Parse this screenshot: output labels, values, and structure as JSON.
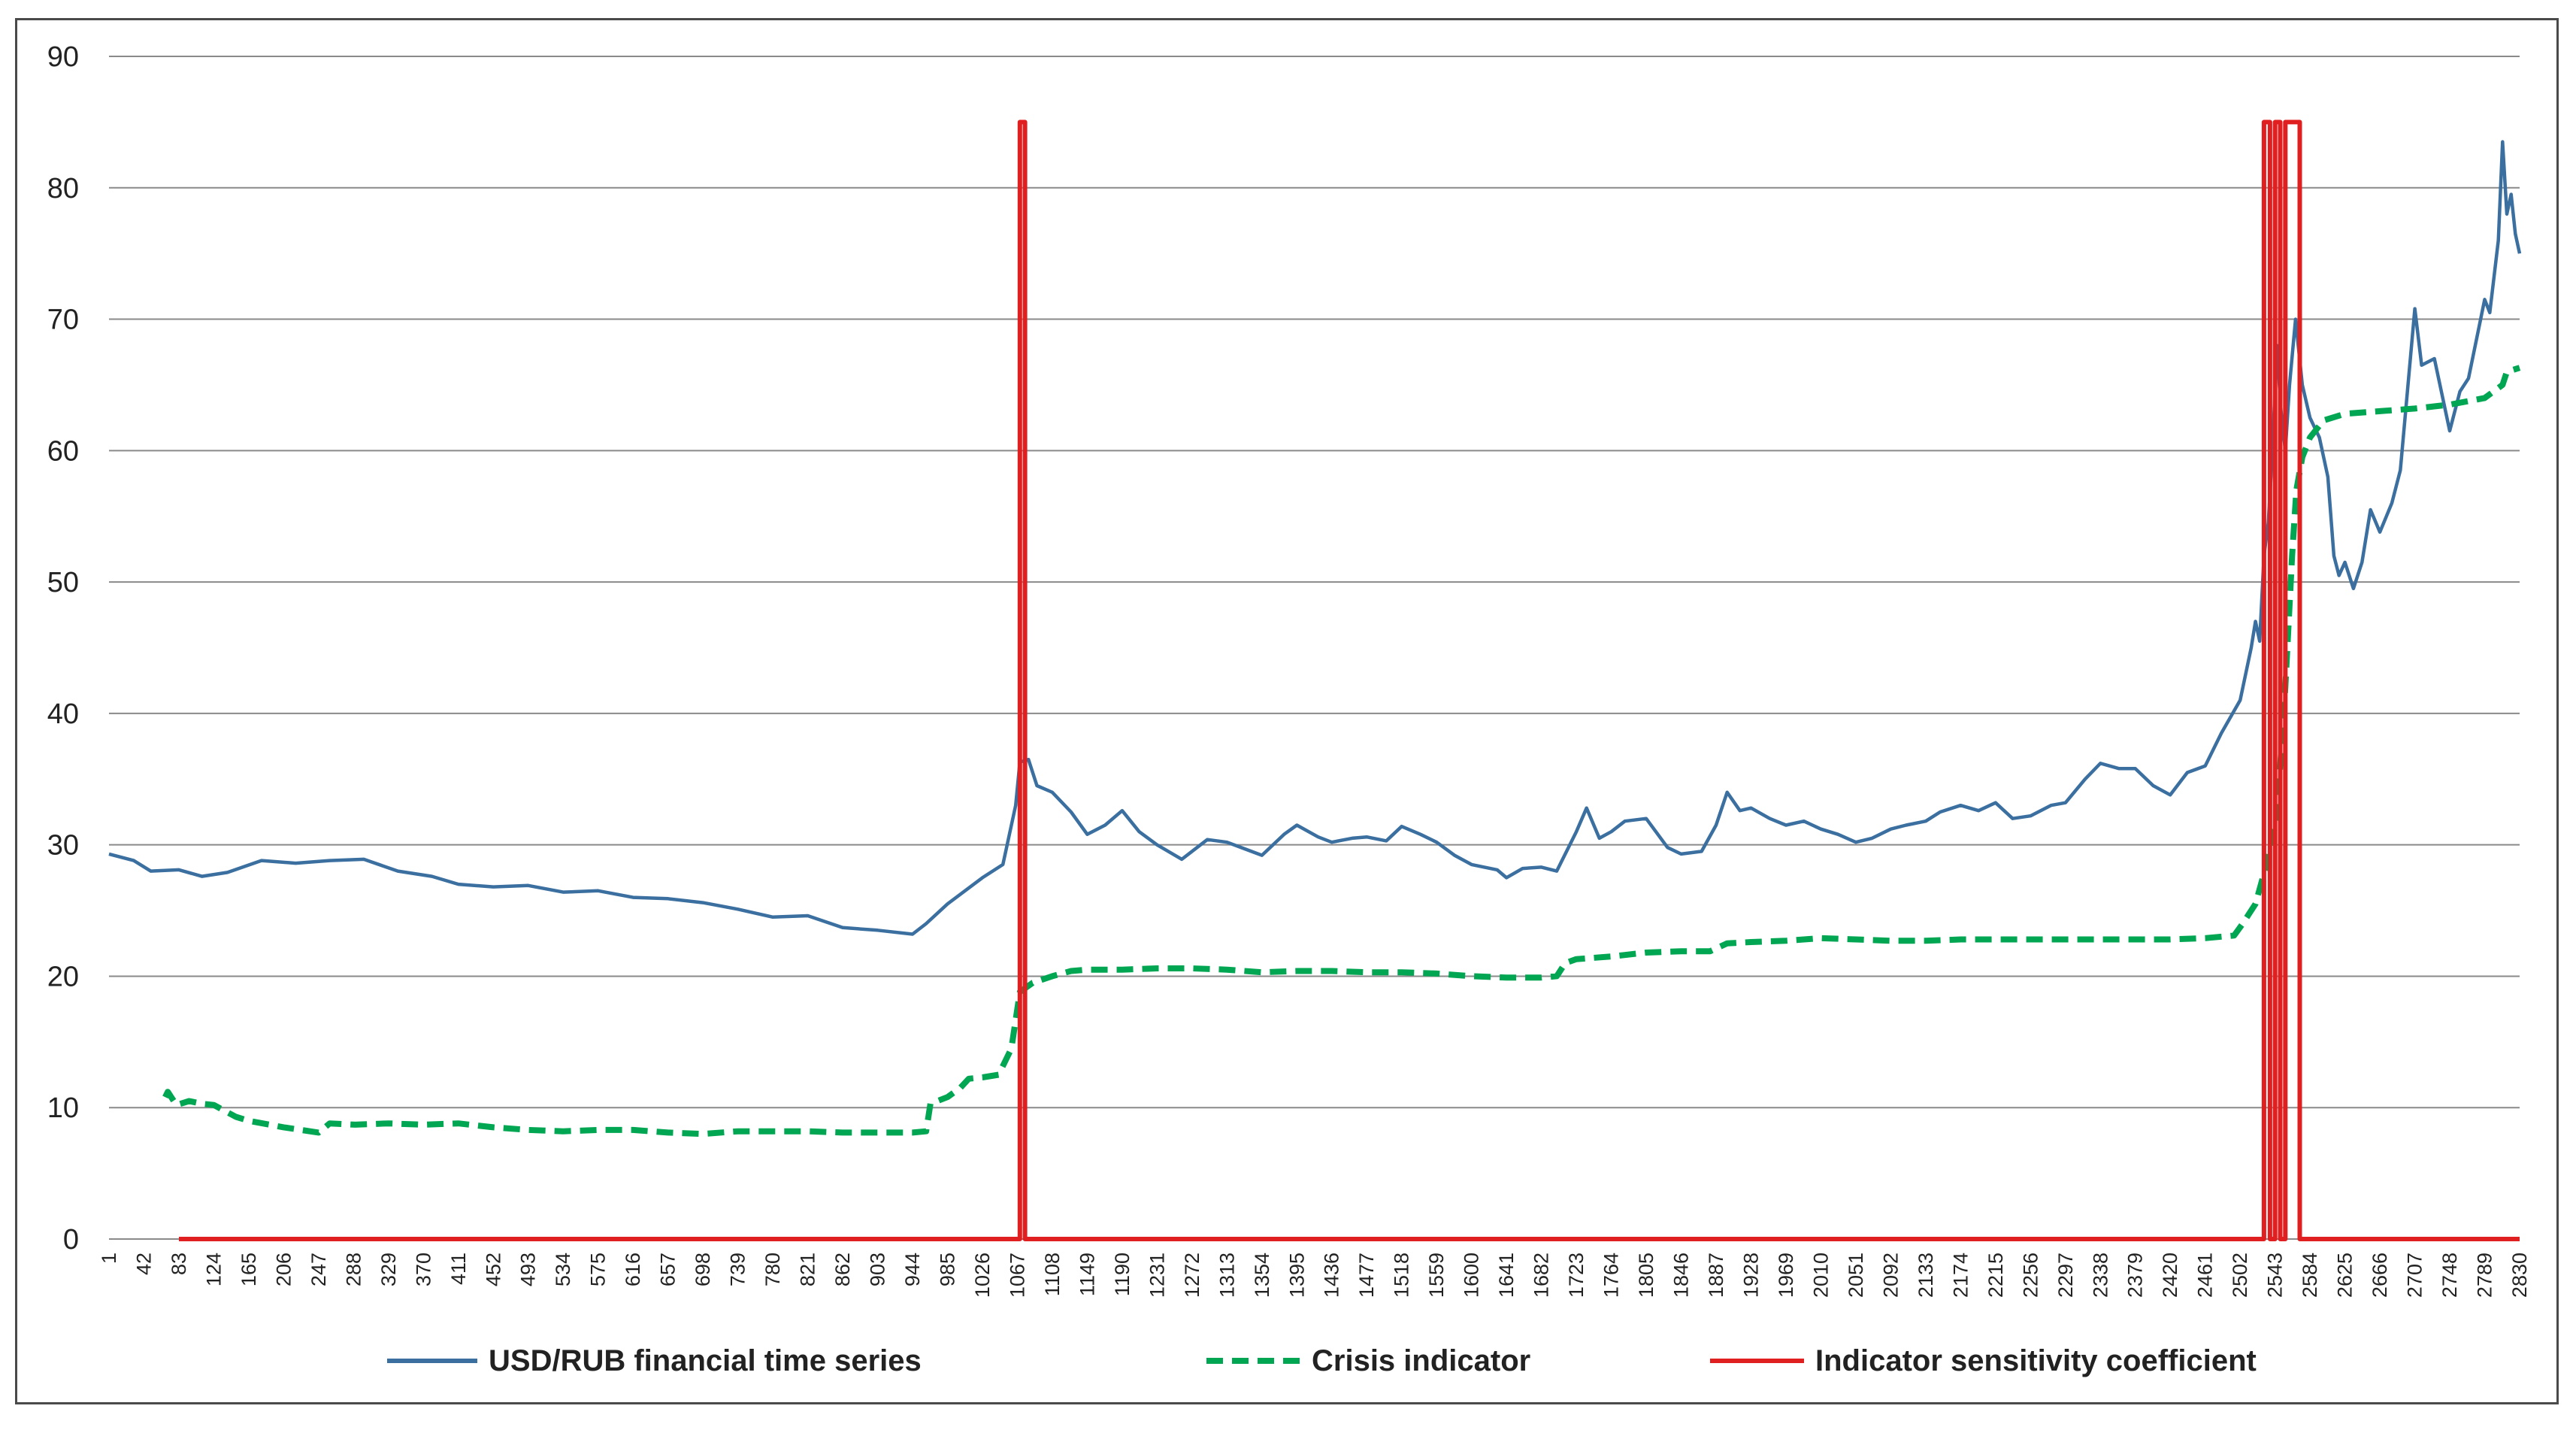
{
  "chart_data": {
    "type": "line",
    "title": "",
    "xlabel": "",
    "ylabel": "",
    "xlim": [
      1,
      2830
    ],
    "ylim": [
      0,
      90
    ],
    "yticks": [
      0,
      10,
      20,
      30,
      40,
      50,
      60,
      70,
      80,
      90
    ],
    "xticks": [
      1,
      42,
      83,
      124,
      165,
      206,
      247,
      288,
      329,
      370,
      411,
      452,
      493,
      534,
      575,
      616,
      657,
      698,
      739,
      780,
      821,
      862,
      903,
      944,
      985,
      1026,
      1067,
      1108,
      1149,
      1190,
      1231,
      1272,
      1313,
      1354,
      1395,
      1436,
      1477,
      1518,
      1559,
      1600,
      1641,
      1682,
      1723,
      1764,
      1805,
      1846,
      1887,
      1928,
      1969,
      2010,
      2051,
      2092,
      2133,
      2174,
      2215,
      2256,
      2297,
      2338,
      2379,
      2420,
      2461,
      2502,
      2543,
      2584,
      2625,
      2666,
      2707,
      2748,
      2789,
      2830
    ],
    "grid": true,
    "legend_position": "bottom",
    "series": [
      {
        "name": "USD/RUB financial time series",
        "color": "#3a6fa0",
        "style": "solid",
        "points": [
          [
            1,
            29.3
          ],
          [
            30,
            28.8
          ],
          [
            50,
            28.0
          ],
          [
            83,
            28.1
          ],
          [
            110,
            27.6
          ],
          [
            140,
            27.9
          ],
          [
            180,
            28.8
          ],
          [
            220,
            28.6
          ],
          [
            260,
            28.8
          ],
          [
            300,
            28.9
          ],
          [
            340,
            28.0
          ],
          [
            380,
            27.6
          ],
          [
            411,
            27.0
          ],
          [
            452,
            26.8
          ],
          [
            493,
            26.9
          ],
          [
            534,
            26.4
          ],
          [
            575,
            26.5
          ],
          [
            616,
            26.0
          ],
          [
            657,
            25.9
          ],
          [
            698,
            25.6
          ],
          [
            739,
            25.1
          ],
          [
            780,
            24.5
          ],
          [
            821,
            24.6
          ],
          [
            862,
            23.7
          ],
          [
            903,
            23.5
          ],
          [
            944,
            23.2
          ],
          [
            960,
            24.0
          ],
          [
            985,
            25.5
          ],
          [
            1026,
            27.5
          ],
          [
            1050,
            28.5
          ],
          [
            1065,
            33.0
          ],
          [
            1070,
            36.3
          ],
          [
            1080,
            36.5
          ],
          [
            1090,
            34.5
          ],
          [
            1108,
            34.0
          ],
          [
            1130,
            32.5
          ],
          [
            1149,
            30.8
          ],
          [
            1170,
            31.5
          ],
          [
            1190,
            32.6
          ],
          [
            1210,
            31.0
          ],
          [
            1231,
            30.0
          ],
          [
            1260,
            28.9
          ],
          [
            1290,
            30.4
          ],
          [
            1313,
            30.2
          ],
          [
            1354,
            29.2
          ],
          [
            1380,
            30.8
          ],
          [
            1395,
            31.5
          ],
          [
            1420,
            30.6
          ],
          [
            1436,
            30.2
          ],
          [
            1460,
            30.5
          ],
          [
            1477,
            30.6
          ],
          [
            1500,
            30.3
          ],
          [
            1518,
            31.4
          ],
          [
            1540,
            30.8
          ],
          [
            1559,
            30.2
          ],
          [
            1580,
            29.2
          ],
          [
            1600,
            28.5
          ],
          [
            1630,
            28.1
          ],
          [
            1641,
            27.5
          ],
          [
            1660,
            28.2
          ],
          [
            1682,
            28.3
          ],
          [
            1700,
            28.0
          ],
          [
            1723,
            31.0
          ],
          [
            1735,
            32.8
          ],
          [
            1750,
            30.5
          ],
          [
            1764,
            31.0
          ],
          [
            1780,
            31.8
          ],
          [
            1805,
            32.0
          ],
          [
            1830,
            29.8
          ],
          [
            1846,
            29.3
          ],
          [
            1870,
            29.5
          ],
          [
            1887,
            31.5
          ],
          [
            1900,
            34.0
          ],
          [
            1915,
            32.6
          ],
          [
            1928,
            32.8
          ],
          [
            1950,
            32.0
          ],
          [
            1969,
            31.5
          ],
          [
            1990,
            31.8
          ],
          [
            2010,
            31.2
          ],
          [
            2030,
            30.8
          ],
          [
            2051,
            30.2
          ],
          [
            2070,
            30.5
          ],
          [
            2092,
            31.2
          ],
          [
            2110,
            31.5
          ],
          [
            2133,
            31.8
          ],
          [
            2150,
            32.5
          ],
          [
            2174,
            33.0
          ],
          [
            2195,
            32.6
          ],
          [
            2215,
            33.2
          ],
          [
            2235,
            32.0
          ],
          [
            2256,
            32.2
          ],
          [
            2280,
            33.0
          ],
          [
            2297,
            33.2
          ],
          [
            2320,
            35.0
          ],
          [
            2338,
            36.2
          ],
          [
            2360,
            35.8
          ],
          [
            2379,
            35.8
          ],
          [
            2400,
            34.5
          ],
          [
            2420,
            33.8
          ],
          [
            2440,
            35.5
          ],
          [
            2461,
            36.0
          ],
          [
            2480,
            38.5
          ],
          [
            2502,
            41.0
          ],
          [
            2515,
            45.0
          ],
          [
            2520,
            47.0
          ],
          [
            2525,
            45.5
          ],
          [
            2530,
            52.0
          ],
          [
            2535,
            54.5
          ],
          [
            2540,
            60.0
          ],
          [
            2545,
            68.0
          ],
          [
            2550,
            63.0
          ],
          [
            2555,
            60.0
          ],
          [
            2560,
            65.0
          ],
          [
            2567,
            70.0
          ],
          [
            2575,
            65.0
          ],
          [
            2584,
            62.5
          ],
          [
            2595,
            61.0
          ],
          [
            2605,
            58.0
          ],
          [
            2612,
            52.0
          ],
          [
            2618,
            50.5
          ],
          [
            2625,
            51.5
          ],
          [
            2635,
            49.5
          ],
          [
            2645,
            51.5
          ],
          [
            2655,
            55.5
          ],
          [
            2666,
            53.8
          ],
          [
            2680,
            56.0
          ],
          [
            2690,
            58.5
          ],
          [
            2707,
            70.8
          ],
          [
            2715,
            66.5
          ],
          [
            2730,
            67.0
          ],
          [
            2748,
            61.5
          ],
          [
            2760,
            64.5
          ],
          [
            2770,
            65.5
          ],
          [
            2789,
            71.5
          ],
          [
            2795,
            70.5
          ],
          [
            2805,
            76.0
          ],
          [
            2810,
            83.5
          ],
          [
            2815,
            78.0
          ],
          [
            2820,
            79.5
          ],
          [
            2825,
            76.5
          ],
          [
            2830,
            75.0
          ]
        ]
      },
      {
        "name": "Crisis indicator",
        "color": "#00a651",
        "style": "dashed",
        "points": [
          [
            67,
            10.8
          ],
          [
            70,
            11.2
          ],
          [
            80,
            10.2
          ],
          [
            95,
            10.5
          ],
          [
            110,
            10.3
          ],
          [
            124,
            10.2
          ],
          [
            150,
            9.3
          ],
          [
            165,
            9.0
          ],
          [
            206,
            8.5
          ],
          [
            247,
            8.1
          ],
          [
            260,
            8.8
          ],
          [
            290,
            8.7
          ],
          [
            329,
            8.8
          ],
          [
            370,
            8.7
          ],
          [
            411,
            8.8
          ],
          [
            452,
            8.5
          ],
          [
            493,
            8.3
          ],
          [
            534,
            8.2
          ],
          [
            575,
            8.3
          ],
          [
            616,
            8.3
          ],
          [
            657,
            8.1
          ],
          [
            698,
            8.0
          ],
          [
            739,
            8.2
          ],
          [
            780,
            8.2
          ],
          [
            821,
            8.2
          ],
          [
            862,
            8.1
          ],
          [
            903,
            8.1
          ],
          [
            944,
            8.1
          ],
          [
            960,
            8.2
          ],
          [
            965,
            10.3
          ],
          [
            985,
            10.8
          ],
          [
            1000,
            11.5
          ],
          [
            1010,
            12.2
          ],
          [
            1026,
            12.3
          ],
          [
            1045,
            12.5
          ],
          [
            1060,
            14.5
          ],
          [
            1070,
            18.8
          ],
          [
            1085,
            19.5
          ],
          [
            1108,
            20.0
          ],
          [
            1130,
            20.4
          ],
          [
            1149,
            20.5
          ],
          [
            1190,
            20.5
          ],
          [
            1231,
            20.6
          ],
          [
            1272,
            20.6
          ],
          [
            1313,
            20.5
          ],
          [
            1354,
            20.3
          ],
          [
            1395,
            20.4
          ],
          [
            1436,
            20.4
          ],
          [
            1477,
            20.3
          ],
          [
            1518,
            20.3
          ],
          [
            1559,
            20.2
          ],
          [
            1600,
            20.0
          ],
          [
            1641,
            19.9
          ],
          [
            1682,
            19.9
          ],
          [
            1700,
            20.0
          ],
          [
            1710,
            21.0
          ],
          [
            1723,
            21.3
          ],
          [
            1764,
            21.5
          ],
          [
            1805,
            21.8
          ],
          [
            1846,
            21.9
          ],
          [
            1880,
            21.9
          ],
          [
            1900,
            22.5
          ],
          [
            1928,
            22.6
          ],
          [
            1969,
            22.7
          ],
          [
            2010,
            22.9
          ],
          [
            2051,
            22.8
          ],
          [
            2092,
            22.7
          ],
          [
            2133,
            22.7
          ],
          [
            2174,
            22.8
          ],
          [
            2215,
            22.8
          ],
          [
            2256,
            22.8
          ],
          [
            2297,
            22.8
          ],
          [
            2338,
            22.8
          ],
          [
            2379,
            22.8
          ],
          [
            2420,
            22.8
          ],
          [
            2461,
            22.9
          ],
          [
            2495,
            23.1
          ],
          [
            2505,
            24.0
          ],
          [
            2520,
            25.5
          ],
          [
            2535,
            29.0
          ],
          [
            2545,
            32.0
          ],
          [
            2555,
            42.0
          ],
          [
            2563,
            52.0
          ],
          [
            2568,
            57.0
          ],
          [
            2575,
            59.5
          ],
          [
            2584,
            61.0
          ],
          [
            2600,
            62.3
          ],
          [
            2625,
            62.8
          ],
          [
            2666,
            63.0
          ],
          [
            2707,
            63.2
          ],
          [
            2748,
            63.5
          ],
          [
            2789,
            64.0
          ],
          [
            2810,
            65.0
          ],
          [
            2815,
            66.0
          ],
          [
            2830,
            66.3
          ]
        ]
      },
      {
        "name": "Indicator sensitivity coefficient",
        "color": "#e02020",
        "style": "solid",
        "points": [
          [
            83,
            0
          ],
          [
            1070,
            0
          ],
          [
            1070,
            85
          ],
          [
            1076,
            85
          ],
          [
            1076,
            0
          ],
          [
            2530,
            0
          ],
          [
            2530,
            85
          ],
          [
            2537,
            85
          ],
          [
            2537,
            0
          ],
          [
            2543,
            0
          ],
          [
            2543,
            85
          ],
          [
            2549,
            85
          ],
          [
            2549,
            0
          ],
          [
            2555,
            0
          ],
          [
            2555,
            85
          ],
          [
            2572,
            85
          ],
          [
            2572,
            0
          ],
          [
            2830,
            0
          ]
        ]
      }
    ]
  }
}
